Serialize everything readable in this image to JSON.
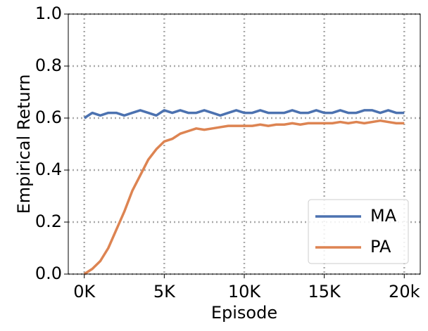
{
  "chart_data": {
    "type": "line",
    "xlabel": "Episode",
    "ylabel": "Empirical Return",
    "x": [
      0,
      500,
      1000,
      1500,
      2000,
      2500,
      3000,
      3500,
      4000,
      4500,
      5000,
      5500,
      6000,
      6500,
      7000,
      7500,
      8000,
      8500,
      9000,
      9500,
      10000,
      10500,
      11000,
      11500,
      12000,
      12500,
      13000,
      13500,
      14000,
      14500,
      15000,
      15500,
      16000,
      16500,
      17000,
      17500,
      18000,
      18500,
      19000,
      19500,
      20000
    ],
    "series": [
      {
        "name": "MA",
        "color": "#4c72b0",
        "values": [
          0.6,
          0.62,
          0.61,
          0.62,
          0.62,
          0.61,
          0.62,
          0.63,
          0.62,
          0.61,
          0.63,
          0.62,
          0.63,
          0.62,
          0.62,
          0.63,
          0.62,
          0.61,
          0.62,
          0.63,
          0.62,
          0.62,
          0.63,
          0.62,
          0.62,
          0.62,
          0.63,
          0.62,
          0.62,
          0.63,
          0.62,
          0.62,
          0.63,
          0.62,
          0.62,
          0.63,
          0.63,
          0.62,
          0.63,
          0.62,
          0.62
        ]
      },
      {
        "name": "PA",
        "color": "#dd8452",
        "values": [
          0.0,
          0.02,
          0.05,
          0.1,
          0.17,
          0.24,
          0.32,
          0.38,
          0.44,
          0.48,
          0.51,
          0.52,
          0.54,
          0.55,
          0.56,
          0.555,
          0.56,
          0.565,
          0.57,
          0.57,
          0.57,
          0.57,
          0.575,
          0.57,
          0.575,
          0.575,
          0.58,
          0.575,
          0.58,
          0.58,
          0.58,
          0.58,
          0.585,
          0.58,
          0.585,
          0.58,
          0.585,
          0.59,
          0.585,
          0.58,
          0.58
        ]
      }
    ],
    "xlim": [
      -1000,
      21000
    ],
    "xticks": [
      {
        "value": 0,
        "label": "0K"
      },
      {
        "value": 5000,
        "label": "5K"
      },
      {
        "value": 10000,
        "label": "10K"
      },
      {
        "value": 15000,
        "label": "15K"
      },
      {
        "value": 20000,
        "label": "20k"
      }
    ],
    "ylim": [
      0,
      1
    ],
    "yticks": [
      {
        "value": 0,
        "label": "0.0"
      },
      0.2,
      0.4,
      0.6,
      0.8,
      {
        "value": 1,
        "label": "1.0"
      }
    ],
    "grid": true,
    "legend": "lower right"
  }
}
